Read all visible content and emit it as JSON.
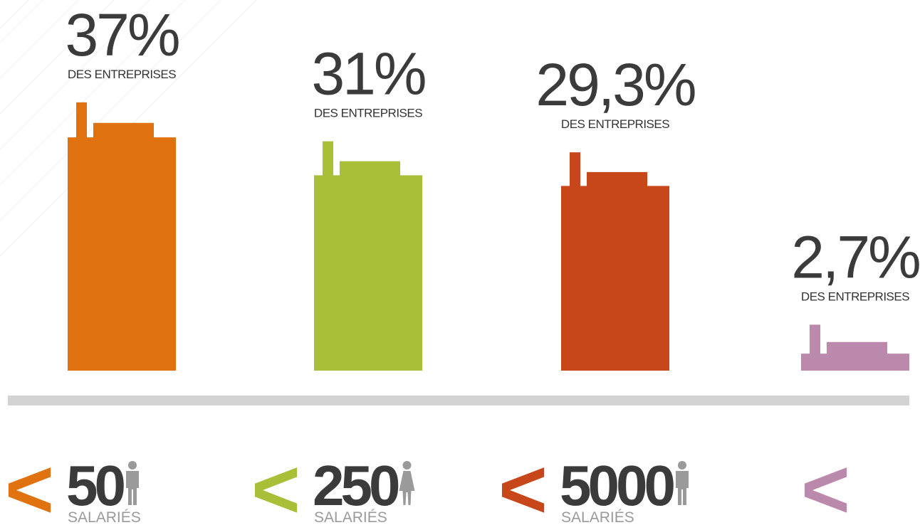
{
  "chart_data": {
    "type": "building-bar",
    "values": [
      37,
      31,
      29.3,
      2.7
    ],
    "value_labels": [
      "37%",
      "31%",
      "29,3%",
      "2,7%"
    ],
    "value_caption": "DES ENTREPRISES",
    "categories": [
      "50",
      "250",
      "5000",
      null
    ],
    "category_prefix": "<",
    "category_unit": "SALARIÉS",
    "colors": [
      "#e0720f",
      "#a9bf37",
      "#c7471b",
      "#bb89ab"
    ]
  }
}
